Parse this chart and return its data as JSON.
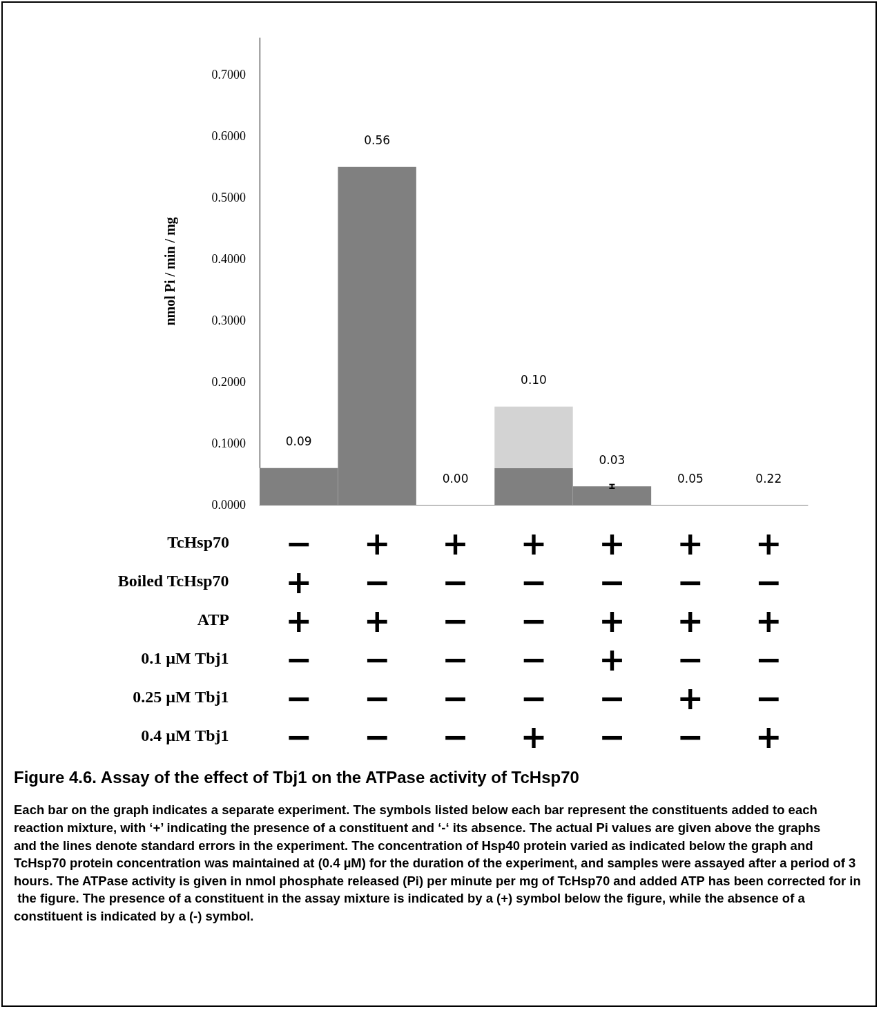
{
  "chart_data": {
    "type": "bar",
    "stacked": true,
    "title": "Figure 4.6. Assay of the effect of Tbj1 on the ATPase activity of TcHsp70",
    "ylabel": "nmol Pi / min / mg",
    "categories": [
      "−\n+\n+\n−\n−\n−",
      "+\n−\n+\n−\n−\n−",
      "+\n−\n−\n−\n−\n−",
      "+\n−\n−\n−\n−\n+",
      "+\n−\n+\n+\n−\n−",
      "+\n−\n+\n−\n+\n−",
      "+\n−\n+\n−\n−\n+"
    ],
    "series": [
      {
        "color": "#808080",
        "values": [
          0.06,
          0.55,
          0,
          0.06,
          0.03,
          0,
          0
        ],
        "errors": [
          null,
          null,
          null,
          null,
          0.003,
          null,
          null
        ]
      },
      {
        "color": "#d3d3d3",
        "values": [
          null,
          null,
          null,
          0.1,
          null,
          null,
          null
        ]
      }
    ],
    "ylim": [
      0,
      0.76
    ],
    "yticks": [
      {
        "value": 0,
        "label": "0.0000"
      },
      {
        "value": 0.1,
        "label": "0.1000"
      },
      {
        "value": 0.2,
        "label": "0.2000"
      },
      {
        "value": 0.3,
        "label": "0.3000"
      },
      {
        "value": 0.4,
        "label": "0.4000"
      },
      {
        "value": 0.5,
        "label": "0.5000"
      },
      {
        "value": 0.6,
        "label": "0.6000"
      },
      {
        "value": 0.7,
        "label": "0.7000"
      }
    ],
    "grid": false,
    "annotations": [
      "TcHsp70",
      "Boiled TcHsp70",
      "ATP",
      "0.1 µM Tbj1",
      "0.25 µM Tbj1",
      "0.4 µM Tbj1",
      "Each bar on the graph indicates a separate experiment. The symbols listed below each bar represent the constituents added to each reaction mixture, with ‘+’ indicating the presence of a constituent and ‘-‘ its absence. The actual Pi values are given above the graphs and the lines denote standard errors in the experiment. The concentration of Hsp40 protein varied as indicated below the graph and TcHsp70 protein concentration was maintained at (0.4 µM) for the duration of the experiment, and samples were assayed after a period of 3 hours. The ATPase activity is given in nmol phosphate released (Pi) per minute per mg of TcHsp70 and added ATP has been corrected for in the figure. The presence of a constituent in the assay mixture is indicated by a (+) symbol below the figure, while the absence of a constituent is indicated by a (-) symbol.",
      "0.09",
      "0.56",
      "0.00",
      "0.10",
      "0.03",
      "0.05",
      "0.22"
    ]
  }
}
